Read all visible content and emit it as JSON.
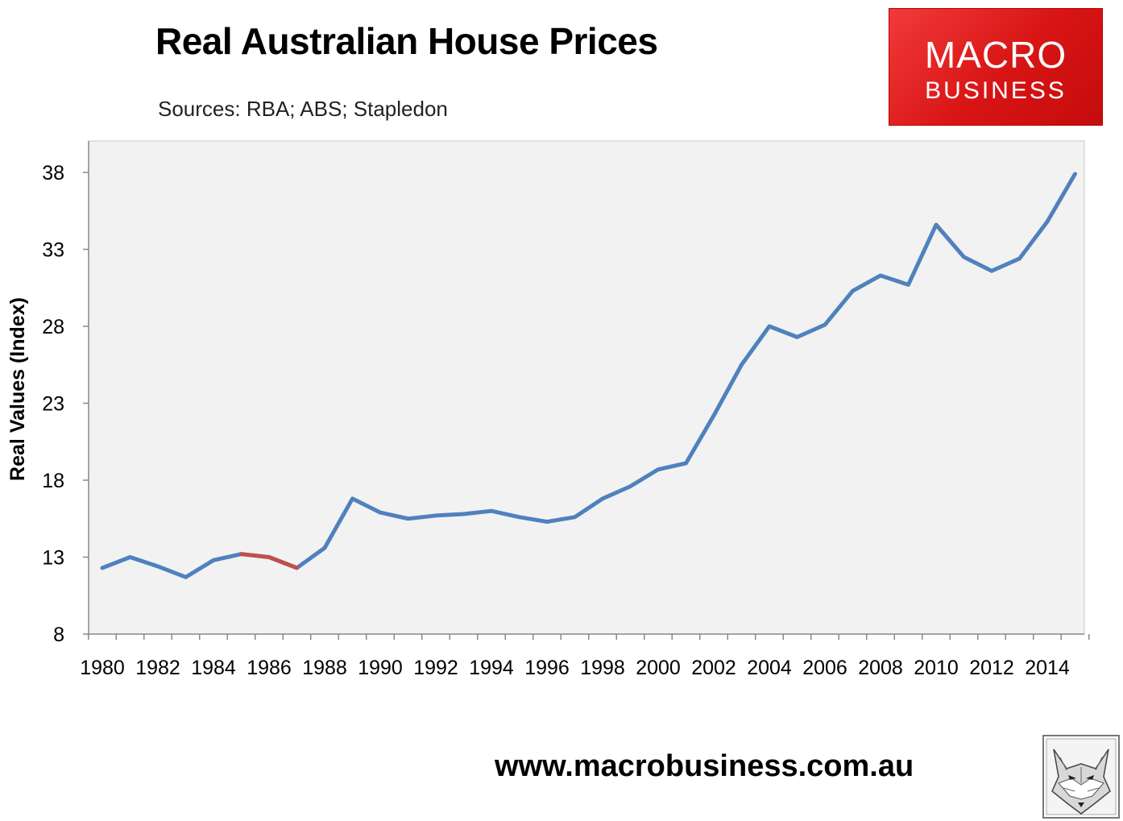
{
  "title": "Real Australian House Prices",
  "subtitle": "Sources: RBA; ABS; Stapledon",
  "logo": {
    "line1": "MACRO",
    "line2": "BUSINESS",
    "color": "#e01b1b"
  },
  "footer": {
    "url": "www.macrobusiness.com.au"
  },
  "chart_data": {
    "type": "line",
    "title": "Real Australian House Prices",
    "ylabel": "Real Values (Index)",
    "xlabel": "",
    "ylim": [
      8,
      40
    ],
    "yticks": [
      8,
      13,
      18,
      23,
      28,
      33,
      38
    ],
    "xtick_labels": [
      "1980",
      "1982",
      "1984",
      "1986",
      "1988",
      "1990",
      "1992",
      "1994",
      "1996",
      "1998",
      "2000",
      "2002",
      "2004",
      "2006",
      "2008",
      "2010",
      "2012",
      "2014"
    ],
    "grid": false,
    "background": "#f2f2f2",
    "x": [
      1980,
      1981,
      1982,
      1983,
      1984,
      1985,
      1986,
      1987,
      1988,
      1989,
      1990,
      1991,
      1992,
      1993,
      1994,
      1995,
      1996,
      1997,
      1998,
      1999,
      2000,
      2001,
      2002,
      2003,
      2004,
      2005,
      2006,
      2007,
      2008,
      2009,
      2010,
      2011,
      2012,
      2013,
      2014,
      2015
    ],
    "series": [
      {
        "color": "#4f81bd",
        "values": [
          12.3,
          13.0,
          12.4,
          11.7,
          12.8,
          13.2,
          13.0,
          12.3,
          13.6,
          16.8,
          15.9,
          15.5,
          15.7,
          15.8,
          16.0,
          15.6,
          15.3,
          15.6,
          16.8,
          17.6,
          18.7,
          19.1,
          22.2,
          25.5,
          28.0,
          27.3,
          28.1,
          30.3,
          31.3,
          30.7,
          34.6,
          32.5,
          31.6,
          32.4,
          34.8,
          37.9
        ]
      }
    ],
    "highlight": {
      "color": "#c0504d",
      "x": [
        1985,
        1986,
        1987
      ],
      "values": [
        13.2,
        13.0,
        12.3
      ]
    }
  }
}
